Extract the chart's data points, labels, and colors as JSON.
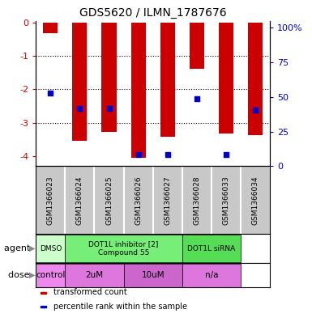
{
  "title": "GDS5620 / ILMN_1787676",
  "samples": [
    "GSM1366023",
    "GSM1366024",
    "GSM1366025",
    "GSM1366026",
    "GSM1366027",
    "GSM1366028",
    "GSM1366033",
    "GSM1366034"
  ],
  "bar_values": [
    -0.32,
    -3.55,
    -3.28,
    -4.05,
    -3.42,
    -1.38,
    -3.33,
    -3.38
  ],
  "dot_values": [
    -2.12,
    -2.57,
    -2.57,
    -3.95,
    -3.95,
    -2.28,
    -3.95,
    -2.62
  ],
  "ylim_left": [
    -4.3,
    0.05
  ],
  "ylim_right": [
    0,
    105
  ],
  "left_ticks": [
    0,
    -1,
    -2,
    -3,
    -4
  ],
  "right_ticks": [
    0,
    25,
    50,
    75,
    100
  ],
  "right_tick_labels": [
    "0",
    "25",
    "50",
    "75",
    "100%"
  ],
  "bar_color": "#cc0000",
  "dot_color": "#0000cc",
  "bg_color": "#ffffff",
  "sample_bg_color": "#c8c8c8",
  "sample_border_color": "#ffffff",
  "agent_groups": [
    {
      "label": "DMSO",
      "start": 0,
      "end": 1,
      "color": "#ccffcc"
    },
    {
      "label": "DOT1L inhibitor [2]\nCompound 55",
      "start": 1,
      "end": 5,
      "color": "#77ee77"
    },
    {
      "label": "DOT1L siRNA",
      "start": 5,
      "end": 7,
      "color": "#55dd55"
    }
  ],
  "dose_groups": [
    {
      "label": "control",
      "start": 0,
      "end": 1,
      "color": "#ee88ee"
    },
    {
      "label": "2uM",
      "start": 1,
      "end": 3,
      "color": "#dd77dd"
    },
    {
      "label": "10uM",
      "start": 3,
      "end": 5,
      "color": "#cc66cc"
    },
    {
      "label": "n/a",
      "start": 5,
      "end": 7,
      "color": "#dd77dd"
    }
  ],
  "legend_items": [
    {
      "label": "transformed count",
      "color": "#cc0000"
    },
    {
      "label": "percentile rank within the sample",
      "color": "#0000cc"
    }
  ],
  "left_tick_color": "#cc0000",
  "right_tick_color": "#0000cc",
  "agent_label": "agent",
  "dose_label": "dose"
}
